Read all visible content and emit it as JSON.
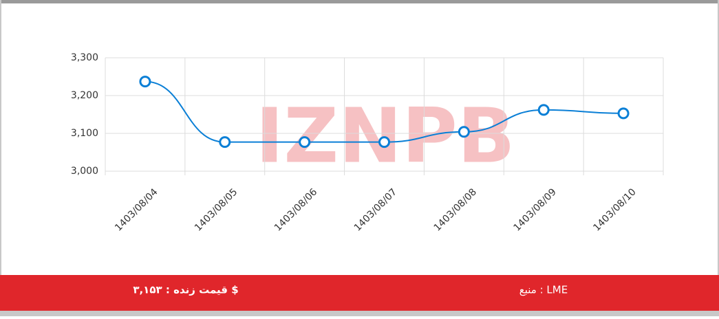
{
  "chart_data": {
    "type": "line",
    "watermark": "IZNPB",
    "categories": [
      "1403/08/04",
      "1403/08/05",
      "1403/08/06",
      "1403/08/07",
      "1403/08/08",
      "1403/08/09",
      "1403/08/10"
    ],
    "series": [
      {
        "color": "#0a7fd6",
        "values": [
          3237,
          3077,
          3077,
          3077,
          3104,
          3162,
          3153
        ]
      }
    ],
    "ylim": [
      3000,
      3300
    ],
    "yticks": [
      {
        "value": 3000,
        "label": "3,000"
      },
      {
        "value": 3100,
        "label": "3,100"
      },
      {
        "value": 3200,
        "label": "3,200"
      },
      {
        "value": 3300,
        "label": "3,300"
      }
    ],
    "grid": true
  },
  "footer": {
    "live_price": "قیمت زنده : ۳,۱۵۳ $",
    "source": "منبع : LME",
    "color": "#e0262b"
  }
}
